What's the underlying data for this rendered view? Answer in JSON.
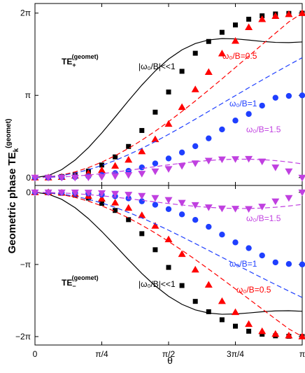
{
  "chart_data": {
    "type": "scatter",
    "xlabel": "θ",
    "ylabel": "Geometric phase TE",
    "ylabel_sub": "k",
    "ylabel_sup": "(geomet)",
    "xlim": [
      0,
      3.14159
    ],
    "x_ticks": [
      {
        "value": 0,
        "label": "0"
      },
      {
        "value": 0.7854,
        "label": "π/4"
      },
      {
        "value": 1.5708,
        "label": "π/2"
      },
      {
        "value": 2.3562,
        "label": "3π/4"
      },
      {
        "value": 3.14159,
        "label": "π"
      }
    ],
    "colors": {
      "black": "#000000",
      "red": "#ff0000",
      "blue": "#1f3fff",
      "magenta": "#c040e0"
    },
    "panels": [
      {
        "name": "top",
        "ylim": [
          -0.3,
          6.65
        ],
        "y_ticks": [
          {
            "value": 0,
            "label": "0"
          },
          {
            "value": 3.14159,
            "label": "π"
          },
          {
            "value": 6.28319,
            "label": "2π"
          }
        ],
        "te_label": {
          "main": "TE",
          "sub": "+",
          "sup": "(geomet)"
        },
        "annotations": [
          {
            "text": "|ω₀/B|<<1",
            "color": "#000000"
          },
          {
            "text": "ω₀/B=0.5",
            "color": "#ff0000"
          },
          {
            "text": "ω₀/B=1",
            "color": "#1f3fff"
          },
          {
            "text": "ω₀/B=1.5",
            "color": "#c040e0"
          }
        ],
        "series": [
          {
            "label": "|ω₀/B|<<1",
            "marker": "square",
            "color": "#000000",
            "x": [
              0,
              0.1571,
              0.3142,
              0.4712,
              0.6283,
              0.7854,
              0.9425,
              1.0996,
              1.2566,
              1.4137,
              1.5708,
              1.7279,
              1.885,
              2.042,
              2.1991,
              2.3562,
              2.5133,
              2.6704,
              2.8274,
              2.9845,
              3.1416
            ],
            "y": [
              0,
              0.01,
              0.04,
              0.12,
              0.25,
              0.48,
              0.79,
              1.19,
              1.8,
              2.5,
              3.27,
              4.06,
              4.75,
              5.2,
              5.55,
              5.83,
              6.05,
              6.18,
              6.25,
              6.27,
              6.28
            ],
            "curve": [
              0,
              0.0775,
              0.3048,
              0.6678,
              1.1441,
              1.7047,
              2.3149,
              2.9371,
              3.5349,
              4.0739,
              4.5276,
              4.8785,
              5.1205,
              5.2587,
              5.3099,
              5.2983,
              5.2532,
              5.2012,
              5.1643,
              5.1564,
              5.1808
            ]
          },
          {
            "label": "ω₀/B=0.5",
            "marker": "triangle",
            "color": "#ff0000",
            "x": [
              0,
              0.1571,
              0.3142,
              0.4712,
              0.6283,
              0.7854,
              0.9425,
              1.0996,
              1.2566,
              1.4137,
              1.5708,
              1.7279,
              1.885,
              2.042,
              2.1991,
              2.3562,
              2.5133,
              2.6704,
              2.8274,
              2.9845,
              3.1416
            ],
            "y": [
              0,
              0,
              0.02,
              0.07,
              0.16,
              0.28,
              0.45,
              0.68,
              1.0,
              1.46,
              2.05,
              2.69,
              3.37,
              4.03,
              4.74,
              5.22,
              5.74,
              6.05,
              6.17,
              6.24,
              6.28
            ],
            "curve": [
              0,
              0.0247,
              0.0979,
              0.218,
              0.3827,
              0.5895,
              0.8353,
              1.1166,
              1.4301,
              1.7719,
              2.1381,
              2.5248,
              2.9283,
              3.3451,
              3.7717,
              4.2052,
              4.6426,
              5.081,
              5.5174,
              5.9486,
              6.2832
            ]
          },
          {
            "label": "ω₀/B=1",
            "marker": "circle",
            "color": "#1f3fff",
            "x": [
              0,
              0.1571,
              0.3142,
              0.4712,
              0.6283,
              0.7854,
              0.9425,
              1.0996,
              1.2566,
              1.4137,
              1.5708,
              1.7279,
              1.885,
              2.042,
              2.1991,
              2.3562,
              2.5133,
              2.6704,
              2.8274,
              2.9845,
              3.1416
            ],
            "y": [
              0,
              0,
              0.01,
              0.02,
              0.05,
              0.1,
              0.17,
              0.26,
              0.39,
              0.54,
              0.73,
              0.96,
              1.2,
              1.5,
              1.84,
              2.18,
              2.43,
              2.75,
              3.05,
              3.12,
              3.14
            ],
            "curve": [
              0,
              0.0193,
              0.0768,
              0.1714,
              0.3012,
              0.4637,
              0.6559,
              0.8745,
              1.1157,
              1.3756,
              1.6506,
              1.9369,
              2.2311,
              2.5301,
              2.8313,
              3.1324,
              3.4315,
              3.7269,
              4.0172,
              4.3015,
              4.5797
            ]
          },
          {
            "label": "ω₀/B=1.5",
            "marker": "triangle-down",
            "color": "#c040e0",
            "x": [
              0,
              0.1571,
              0.3142,
              0.4712,
              0.6283,
              0.7854,
              0.9425,
              1.0996,
              1.2566,
              1.4137,
              1.5708,
              1.7279,
              1.885,
              2.042,
              2.1991,
              2.3562,
              2.5133,
              2.6704,
              2.8274,
              2.9845,
              3.1416
            ],
            "y": [
              0,
              0,
              0,
              0,
              0.01,
              0.03,
              0.06,
              0.1,
              0.15,
              0.24,
              0.33,
              0.45,
              0.55,
              0.65,
              0.7,
              0.71,
              0.72,
              0.62,
              0.39,
              0.24,
              0.0
            ],
            "curve": [
              0,
              0.0064,
              0.0254,
              0.0563,
              0.0983,
              0.1503,
              0.2105,
              0.2769,
              0.3471,
              0.4183,
              0.4877,
              0.5521,
              0.6086,
              0.6543,
              0.6867,
              0.7035,
              0.7033,
              0.6852,
              0.6491,
              0.5955,
              0.5257
            ]
          }
        ]
      },
      {
        "name": "bottom",
        "ylim": [
          -6.65,
          0.3
        ],
        "y_ticks": [
          {
            "value": 0,
            "label": "0"
          },
          {
            "value": -3.14159,
            "label": "−π"
          },
          {
            "value": -6.28319,
            "label": "−2π"
          }
        ],
        "te_label": {
          "main": "TE",
          "sub": "−",
          "sup": "(geomet)"
        },
        "annotations": [
          {
            "text": "|ω₀/B|<<1",
            "color": "#000000"
          },
          {
            "text": "ω₀/B=0.5",
            "color": "#ff0000"
          },
          {
            "text": "ω₀/B=1",
            "color": "#1f3fff"
          },
          {
            "text": "ω₀/B=1.5",
            "color": "#c040e0"
          }
        ],
        "series": [
          {
            "label": "|ω₀/B|<<1",
            "marker": "square",
            "color": "#000000",
            "x": [
              0,
              0.1571,
              0.3142,
              0.4712,
              0.6283,
              0.7854,
              0.9425,
              1.0996,
              1.2566,
              1.4137,
              1.5708,
              1.7279,
              1.885,
              2.042,
              2.1991,
              2.3562,
              2.5133,
              2.6704,
              2.8274,
              2.9845,
              3.1416
            ],
            "y": [
              0,
              -0.01,
              -0.04,
              -0.12,
              -0.25,
              -0.48,
              -0.79,
              -1.19,
              -1.8,
              -2.5,
              -3.27,
              -4.06,
              -4.75,
              -5.2,
              -5.55,
              -5.83,
              -6.05,
              -6.18,
              -6.25,
              -6.27,
              -6.28
            ],
            "curve": [
              0,
              -0.0775,
              -0.3048,
              -0.6678,
              -1.1441,
              -1.7047,
              -2.3149,
              -2.9371,
              -3.5349,
              -4.0739,
              -4.5276,
              -4.8785,
              -5.1205,
              -5.2587,
              -5.3099,
              -5.2983,
              -5.2532,
              -5.2012,
              -5.1643,
              -5.1564,
              -5.1808
            ]
          },
          {
            "label": "ω₀/B=0.5",
            "marker": "triangle",
            "color": "#ff0000",
            "x": [
              0,
              0.1571,
              0.3142,
              0.4712,
              0.6283,
              0.7854,
              0.9425,
              1.0996,
              1.2566,
              1.4137,
              1.5708,
              1.7279,
              1.885,
              2.042,
              2.1991,
              2.3562,
              2.5133,
              2.6704,
              2.8274,
              2.9845,
              3.1416
            ],
            "y": [
              0,
              0,
              -0.02,
              -0.07,
              -0.16,
              -0.28,
              -0.45,
              -0.68,
              -1.0,
              -1.46,
              -2.05,
              -2.69,
              -3.37,
              -4.03,
              -4.74,
              -5.22,
              -5.74,
              -6.05,
              -6.17,
              -6.24,
              -6.28
            ],
            "curve": [
              0,
              -0.0247,
              -0.0979,
              -0.218,
              -0.3827,
              -0.5895,
              -0.8353,
              -1.1166,
              -1.4301,
              -1.7719,
              -2.1381,
              -2.5248,
              -2.9283,
              -3.3451,
              -3.7717,
              -4.2052,
              -4.6426,
              -5.081,
              -5.5174,
              -5.9486,
              -6.2832
            ]
          },
          {
            "label": "ω₀/B=1",
            "marker": "circle",
            "color": "#1f3fff",
            "x": [
              0,
              0.1571,
              0.3142,
              0.4712,
              0.6283,
              0.7854,
              0.9425,
              1.0996,
              1.2566,
              1.4137,
              1.5708,
              1.7279,
              1.885,
              2.042,
              2.1991,
              2.3562,
              2.5133,
              2.6704,
              2.8274,
              2.9845,
              3.1416
            ],
            "y": [
              0,
              0,
              -0.01,
              -0.02,
              -0.05,
              -0.1,
              -0.17,
              -0.26,
              -0.39,
              -0.54,
              -0.73,
              -0.96,
              -1.2,
              -1.5,
              -1.84,
              -2.18,
              -2.43,
              -2.75,
              -3.05,
              -3.12,
              -3.14
            ],
            "curve": [
              0,
              -0.0193,
              -0.0768,
              -0.1714,
              -0.3012,
              -0.4637,
              -0.6559,
              -0.8745,
              -1.1157,
              -1.3756,
              -1.6506,
              -1.9369,
              -2.2311,
              -2.5301,
              -2.8313,
              -3.1324,
              -3.4315,
              -3.7269,
              -4.0172,
              -4.3015,
              -4.5797
            ]
          },
          {
            "label": "ω₀/B=1.5",
            "marker": "triangle-down",
            "color": "#c040e0",
            "x": [
              0,
              0.1571,
              0.3142,
              0.4712,
              0.6283,
              0.7854,
              0.9425,
              1.0996,
              1.2566,
              1.4137,
              1.5708,
              1.7279,
              1.885,
              2.042,
              2.1991,
              2.3562,
              2.5133,
              2.6704,
              2.8274,
              2.9845,
              3.1416
            ],
            "y": [
              0,
              0,
              0,
              0,
              -0.01,
              -0.03,
              -0.06,
              -0.1,
              -0.15,
              -0.24,
              -0.33,
              -0.45,
              -0.55,
              -0.65,
              -0.7,
              -0.71,
              -0.72,
              -0.62,
              -0.39,
              -0.24,
              0.0
            ],
            "curve": [
              0,
              -0.0064,
              -0.0254,
              -0.0563,
              -0.0983,
              -0.1503,
              -0.2105,
              -0.2769,
              -0.3471,
              -0.4183,
              -0.4877,
              -0.5521,
              -0.6086,
              -0.6543,
              -0.6867,
              -0.7035,
              -0.7033,
              -0.6852,
              -0.6491,
              -0.5955,
              -0.5257
            ]
          }
        ]
      }
    ]
  }
}
